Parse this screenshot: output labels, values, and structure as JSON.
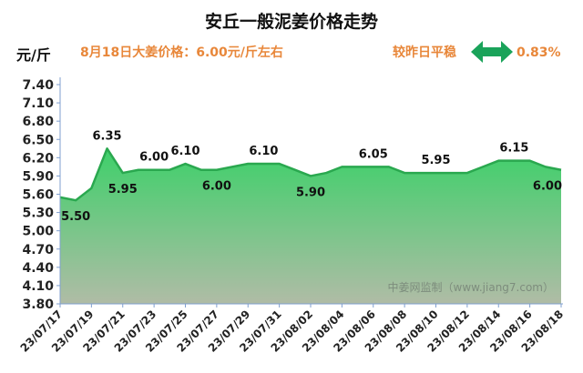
{
  "header": {
    "title": "安丘一般泥姜价格走势",
    "unit": "元/斤",
    "price_note": "8月18日大姜价格：6.00元/斤左右",
    "trend_label": "较昨日平稳",
    "trend_pct": "0.83%"
  },
  "watermark": "中姜网监制（www.jiang7.com）",
  "colors": {
    "title": "#111111",
    "accent": "#e8873a",
    "arrow": "#1aa35a",
    "line": "#2aa84f",
    "fill_top": "#3ed06a",
    "fill_bottom": "#b0bca6",
    "axis": "#7f9fcf",
    "tick_text": "#222222",
    "label_text": "#111111",
    "watermark": "#7d8d7d"
  },
  "chart_data": {
    "type": "area",
    "x": [
      "23/07/17",
      "23/07/18",
      "23/07/19",
      "23/07/20",
      "23/07/21",
      "23/07/22",
      "23/07/23",
      "23/07/24",
      "23/07/25",
      "23/07/26",
      "23/07/27",
      "23/07/28",
      "23/07/29",
      "23/07/30",
      "23/07/31",
      "23/08/01",
      "23/08/02",
      "23/08/03",
      "23/08/04",
      "23/08/05",
      "23/08/06",
      "23/08/07",
      "23/08/08",
      "23/08/09",
      "23/08/10",
      "23/08/11",
      "23/08/12",
      "23/08/13",
      "23/08/14",
      "23/08/15",
      "23/08/16",
      "23/08/17",
      "23/08/18"
    ],
    "x_tick_labels": [
      "23/07/17",
      "23/07/19",
      "23/07/21",
      "23/07/23",
      "23/07/25",
      "23/07/27",
      "23/07/29",
      "23/07/31",
      "23/08/02",
      "23/08/04",
      "23/08/06",
      "23/08/08",
      "23/08/10",
      "23/08/12",
      "23/08/14",
      "23/08/16",
      "23/08/18"
    ],
    "values": [
      5.55,
      5.5,
      5.7,
      6.35,
      5.95,
      6.0,
      6.0,
      6.0,
      6.1,
      6.0,
      6.0,
      6.05,
      6.1,
      6.1,
      6.1,
      6.0,
      5.9,
      5.95,
      6.05,
      6.05,
      6.05,
      6.05,
      5.95,
      5.95,
      5.95,
      5.95,
      5.95,
      6.05,
      6.15,
      6.15,
      6.15,
      6.05,
      6.0
    ],
    "ylim": [
      3.8,
      7.4
    ],
    "y_ticks": [
      "3.80",
      "4.10",
      "4.40",
      "4.70",
      "5.00",
      "5.30",
      "5.60",
      "5.90",
      "6.20",
      "6.50",
      "6.80",
      "7.10",
      "7.40"
    ],
    "grid": false,
    "data_labels": [
      {
        "index": 1,
        "text": "5.50"
      },
      {
        "index": 3,
        "text": "6.35"
      },
      {
        "index": 4,
        "text": "5.95"
      },
      {
        "index": 6,
        "text": "6.00"
      },
      {
        "index": 8,
        "text": "6.10"
      },
      {
        "index": 10,
        "text": "6.00"
      },
      {
        "index": 13,
        "text": "6.10"
      },
      {
        "index": 16,
        "text": "5.90"
      },
      {
        "index": 20,
        "text": "6.05"
      },
      {
        "index": 24,
        "text": "5.95"
      },
      {
        "index": 29,
        "text": "6.15"
      },
      {
        "index": 32,
        "text": "6.00"
      }
    ]
  }
}
